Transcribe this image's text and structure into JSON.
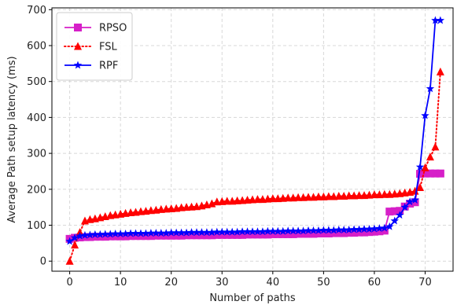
{
  "chart_data": {
    "type": "line",
    "title": "",
    "xlabel": "Number of paths",
    "ylabel": "Average Path setup latency (ms)",
    "xlim": [
      -3.5,
      75.5
    ],
    "ylim": [
      -28,
      705
    ],
    "xticks": [
      0,
      10,
      20,
      30,
      40,
      50,
      60,
      70
    ],
    "yticks": [
      0,
      100,
      200,
      300,
      400,
      500,
      600,
      700
    ],
    "grid": true,
    "legend_position": "top-left",
    "series": [
      {
        "name": "RPSO",
        "color": "#d61fc8",
        "line_style": "solid",
        "marker": "square",
        "x": [
          0,
          1,
          2,
          3,
          4,
          5,
          6,
          7,
          8,
          9,
          10,
          11,
          12,
          13,
          14,
          15,
          16,
          17,
          18,
          19,
          20,
          21,
          22,
          23,
          24,
          25,
          26,
          27,
          28,
          29,
          30,
          31,
          32,
          33,
          34,
          35,
          36,
          37,
          38,
          39,
          40,
          41,
          42,
          43,
          44,
          45,
          46,
          47,
          48,
          49,
          50,
          51,
          52,
          53,
          54,
          55,
          56,
          57,
          58,
          59,
          60,
          61,
          62,
          63,
          64,
          65,
          66,
          67,
          68,
          69,
          70,
          71,
          72,
          73
        ],
        "y": [
          62,
          65,
          66,
          67,
          67,
          68,
          68,
          68,
          69,
          69,
          69,
          69,
          70,
          70,
          70,
          70,
          70,
          71,
          71,
          71,
          71,
          71,
          71,
          72,
          72,
          72,
          72,
          72,
          72,
          73,
          73,
          73,
          73,
          73,
          73,
          74,
          74,
          74,
          74,
          74,
          75,
          75,
          75,
          75,
          75,
          76,
          76,
          76,
          76,
          77,
          77,
          77,
          78,
          78,
          78,
          79,
          79,
          80,
          80,
          81,
          82,
          83,
          85,
          138,
          139,
          140,
          152,
          160,
          164,
          243,
          244,
          244,
          244,
          244
        ]
      },
      {
        "name": "FSL",
        "color": "#ff0000",
        "line_style": "dotted",
        "marker": "triangle",
        "x": [
          0,
          1,
          2,
          3,
          4,
          5,
          6,
          7,
          8,
          9,
          10,
          11,
          12,
          13,
          14,
          15,
          16,
          17,
          18,
          19,
          20,
          21,
          22,
          23,
          24,
          25,
          26,
          27,
          28,
          29,
          30,
          31,
          32,
          33,
          34,
          35,
          36,
          37,
          38,
          39,
          40,
          41,
          42,
          43,
          44,
          45,
          46,
          47,
          48,
          49,
          50,
          51,
          52,
          53,
          54,
          55,
          56,
          57,
          58,
          59,
          60,
          61,
          62,
          63,
          64,
          65,
          66,
          67,
          68,
          69,
          70,
          71,
          72,
          73
        ],
        "y": [
          0,
          45,
          80,
          112,
          116,
          118,
          121,
          124,
          127,
          129,
          131,
          133,
          135,
          136,
          138,
          139,
          141,
          142,
          144,
          145,
          146,
          147,
          149,
          150,
          151,
          152,
          154,
          157,
          160,
          165,
          166,
          167,
          167,
          168,
          169,
          170,
          171,
          172,
          172,
          173,
          174,
          174,
          175,
          176,
          176,
          177,
          177,
          178,
          178,
          179,
          179,
          180,
          180,
          181,
          181,
          182,
          182,
          183,
          183,
          184,
          185,
          185,
          186,
          186,
          187,
          188,
          190,
          192,
          195,
          205,
          260,
          290,
          318,
          527
        ]
      },
      {
        "name": "RPF",
        "color": "#0000ff",
        "line_style": "solid",
        "marker": "star",
        "x": [
          0,
          1,
          2,
          3,
          4,
          5,
          6,
          7,
          8,
          9,
          10,
          11,
          12,
          13,
          14,
          15,
          16,
          17,
          18,
          19,
          20,
          21,
          22,
          23,
          24,
          25,
          26,
          27,
          28,
          29,
          30,
          31,
          32,
          33,
          34,
          35,
          36,
          37,
          38,
          39,
          40,
          41,
          42,
          43,
          44,
          45,
          46,
          47,
          48,
          49,
          50,
          51,
          52,
          53,
          54,
          55,
          56,
          57,
          58,
          59,
          60,
          61,
          62,
          63,
          64,
          65,
          66,
          67,
          68,
          69,
          70,
          71,
          72,
          73
        ],
        "y": [
          55,
          65,
          70,
          72,
          73,
          74,
          74,
          75,
          75,
          76,
          76,
          76,
          77,
          77,
          77,
          77,
          78,
          78,
          78,
          78,
          79,
          79,
          79,
          79,
          80,
          80,
          80,
          80,
          80,
          81,
          81,
          81,
          81,
          81,
          82,
          82,
          82,
          82,
          82,
          83,
          83,
          83,
          83,
          84,
          84,
          84,
          84,
          85,
          85,
          85,
          86,
          86,
          86,
          87,
          87,
          87,
          88,
          88,
          89,
          89,
          90,
          91,
          92,
          96,
          112,
          128,
          150,
          165,
          170,
          262,
          405,
          480,
          670,
          670
        ]
      }
    ]
  }
}
